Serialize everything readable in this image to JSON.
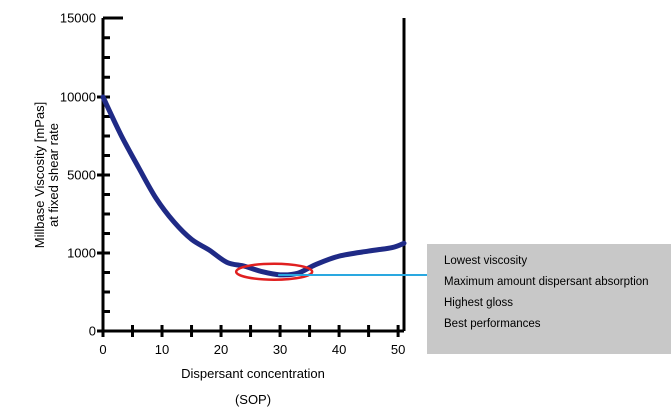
{
  "chart_data": {
    "type": "line",
    "title": "",
    "xlabel": "Dispersant concentration",
    "xlabel_unit": "(SOP)",
    "ylabel": "Millbase Viscosity [mPas]",
    "ylabel_line2": "at fixed shear rate",
    "x_ticks": [
      0,
      10,
      20,
      30,
      40,
      50
    ],
    "x_tick_labels": [
      "0",
      "10",
      "20",
      "30",
      "40",
      "50"
    ],
    "y_tick_labels": [
      "0",
      "1000",
      "5000",
      "10000",
      "15000"
    ],
    "y_scale_note": "non-linear axis: labeled ticks 0, 1000, 5000, 10000, 15000 are evenly spaced",
    "xlim": [
      0,
      51
    ],
    "grid": false,
    "legend": "none",
    "series": [
      {
        "color": "#1f2a86",
        "x": [
          0,
          3,
          6,
          9,
          12,
          15,
          18,
          21,
          24,
          27,
          30,
          33,
          36,
          40,
          45,
          49,
          51
        ],
        "y": [
          10000,
          7600,
          5500,
          3800,
          2600,
          1700,
          1150,
          880,
          830,
          760,
          720,
          740,
          850,
          960,
          1100,
          1280,
          1500
        ]
      }
    ],
    "highlight_ellipse": {
      "x_center": 29,
      "y_center": 760,
      "color": "#e02020"
    },
    "annotation": {
      "pointer_color": "#2aa8e0",
      "lines": [
        "Lowest viscosity",
        "Maximum amount dispersant absorption",
        "Highest gloss",
        "Best performances"
      ]
    }
  }
}
